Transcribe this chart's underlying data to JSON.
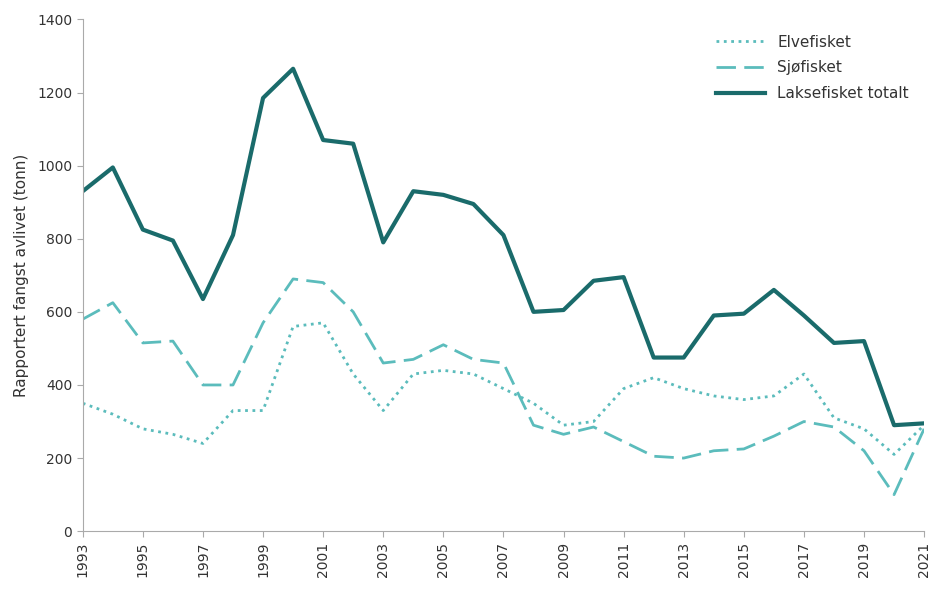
{
  "years": [
    1993,
    1994,
    1995,
    1996,
    1997,
    1998,
    1999,
    2000,
    2001,
    2002,
    2003,
    2004,
    2005,
    2006,
    2007,
    2008,
    2009,
    2010,
    2011,
    2012,
    2013,
    2014,
    2015,
    2016,
    2017,
    2018,
    2019,
    2020,
    2021
  ],
  "elvefisket": [
    350,
    320,
    280,
    265,
    240,
    330,
    330,
    560,
    570,
    430,
    330,
    430,
    440,
    430,
    390,
    350,
    290,
    300,
    390,
    420,
    390,
    370,
    360,
    370,
    430,
    310,
    280,
    210,
    290
  ],
  "sjofisket": [
    580,
    625,
    515,
    520,
    400,
    400,
    570,
    690,
    680,
    600,
    460,
    470,
    510,
    470,
    460,
    290,
    265,
    285,
    245,
    205,
    200,
    220,
    225,
    260,
    300,
    285,
    220,
    100,
    280
  ],
  "laksefisket_totalt": [
    930,
    995,
    825,
    795,
    635,
    810,
    1185,
    1265,
    1070,
    1060,
    790,
    930,
    920,
    895,
    810,
    600,
    605,
    685,
    695,
    475,
    475,
    590,
    595,
    660,
    590,
    515,
    520,
    290,
    295
  ],
  "color_elve": "#5bbcbc",
  "color_sjo": "#5bbcbc",
  "color_total": "#1a6b6b",
  "ylabel": "Rapportert fangst avlivet (tonn)",
  "ylim": [
    0,
    1400
  ],
  "yticks": [
    0,
    200,
    400,
    600,
    800,
    1000,
    1200,
    1400
  ],
  "legend_elvefisket": "Elvefisket",
  "legend_sjofisket": "Sjøfisket",
  "legend_total": "Laksefisket totalt",
  "spine_color": "#aaaaaa",
  "tick_color": "#555555",
  "label_fontsize": 11,
  "tick_fontsize": 10
}
